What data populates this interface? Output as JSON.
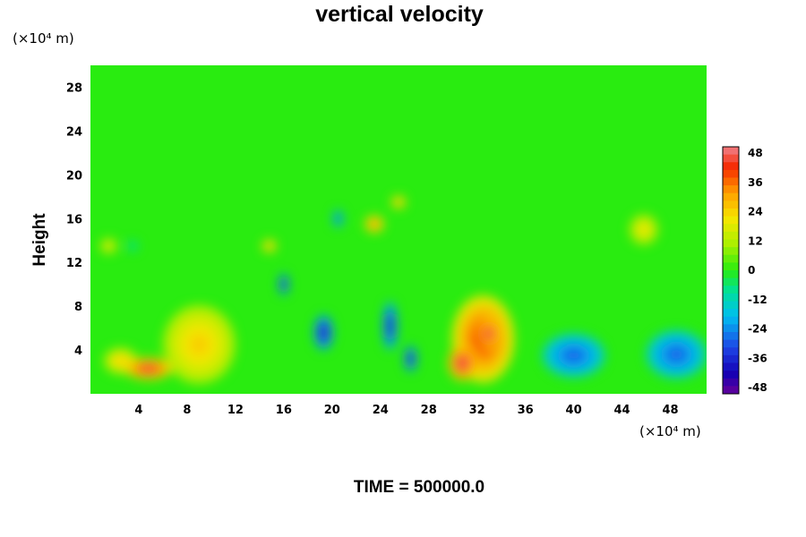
{
  "chart_data": {
    "type": "heatmap",
    "title": "vertical velocity",
    "ylabel": "Height",
    "xlabel": "",
    "y_unit": "(×10⁴ m)",
    "x_unit": "(×10⁴ m)",
    "footer": "TIME = 500000.0",
    "xlim": [
      0,
      51
    ],
    "ylim": [
      0,
      30
    ],
    "x_ticks": [
      4,
      8,
      12,
      16,
      20,
      24,
      28,
      32,
      36,
      40,
      44,
      48
    ],
    "y_ticks": [
      4,
      8,
      12,
      16,
      20,
      24,
      28
    ],
    "colorbar": {
      "min": -48,
      "max": 48,
      "ticks": [
        48,
        36,
        24,
        12,
        0,
        -12,
        -24,
        -36,
        -48
      ]
    },
    "features": [
      {
        "x": 9,
        "y": 4.5,
        "rx": 3.0,
        "ry": 3.6,
        "value": 24
      },
      {
        "x": 2.5,
        "y": 3.0,
        "rx": 1.4,
        "ry": 1.2,
        "value": 24
      },
      {
        "x": 4.8,
        "y": 2.3,
        "rx": 2.0,
        "ry": 1.0,
        "value": 44
      },
      {
        "x": 32.5,
        "y": 5.0,
        "rx": 2.6,
        "ry": 4.0,
        "value": 40
      },
      {
        "x": 30.8,
        "y": 2.8,
        "rx": 1.2,
        "ry": 1.6,
        "value": 46
      },
      {
        "x": 33.0,
        "y": 5.5,
        "rx": 0.8,
        "ry": 1.4,
        "value": 46
      },
      {
        "x": 40.0,
        "y": 3.5,
        "rx": 2.6,
        "ry": 2.0,
        "value": -28
      },
      {
        "x": 48.5,
        "y": 3.6,
        "rx": 2.5,
        "ry": 2.2,
        "value": -28
      },
      {
        "x": 19.3,
        "y": 5.6,
        "rx": 0.8,
        "ry": 1.6,
        "value": -40
      },
      {
        "x": 24.8,
        "y": 6.2,
        "rx": 0.6,
        "ry": 2.2,
        "value": -38
      },
      {
        "x": 26.5,
        "y": 3.2,
        "rx": 0.5,
        "ry": 1.2,
        "value": -40
      },
      {
        "x": 16.0,
        "y": 10.0,
        "rx": 0.4,
        "ry": 1.0,
        "value": -40
      },
      {
        "x": 23.5,
        "y": 15.5,
        "rx": 0.8,
        "ry": 0.8,
        "value": 34
      },
      {
        "x": 25.5,
        "y": 17.5,
        "rx": 0.6,
        "ry": 0.6,
        "value": 30
      },
      {
        "x": 14.8,
        "y": 13.5,
        "rx": 0.6,
        "ry": 0.6,
        "value": 28
      },
      {
        "x": 1.5,
        "y": 13.5,
        "rx": 0.7,
        "ry": 0.7,
        "value": 20
      },
      {
        "x": 45.8,
        "y": 15.0,
        "rx": 1.2,
        "ry": 1.4,
        "value": 20
      },
      {
        "x": 20.5,
        "y": 16.0,
        "rx": 0.4,
        "ry": 0.8,
        "value": -30
      },
      {
        "x": 3.5,
        "y": 13.5,
        "rx": 0.4,
        "ry": 0.5,
        "value": -12
      }
    ]
  }
}
